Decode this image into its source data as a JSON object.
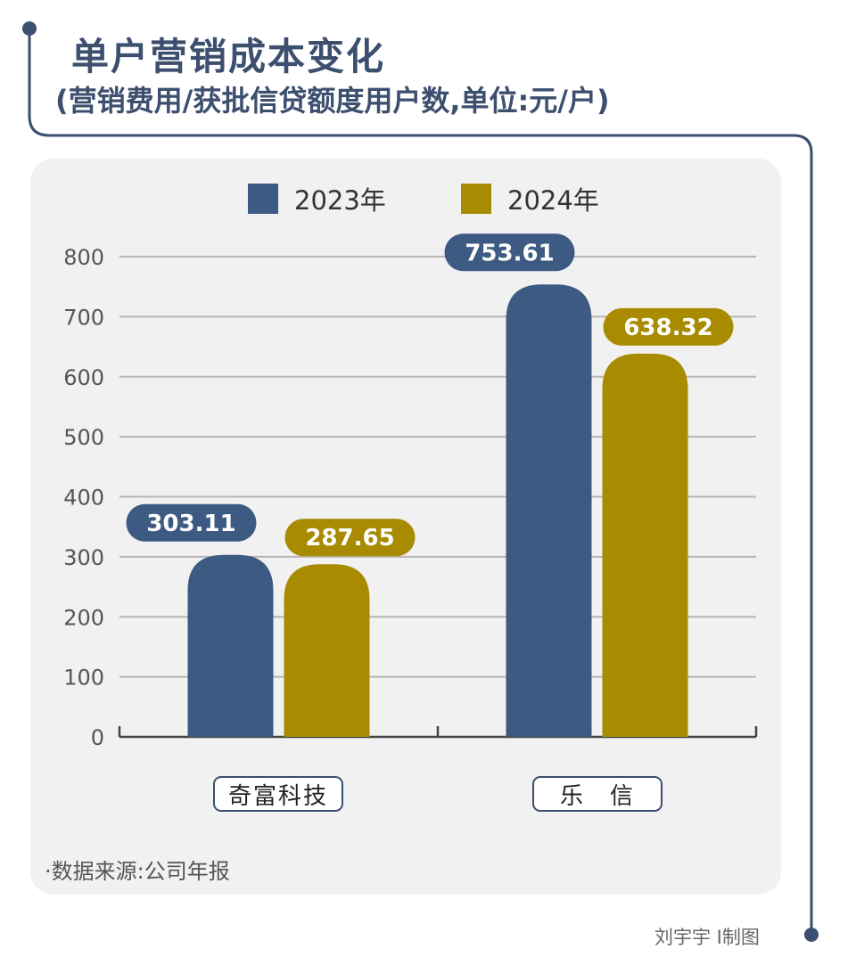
{
  "header": {
    "title": "单户营销成本变化",
    "subtitle": "(营销费用/获批信贷额度用户数,单位:元/户)"
  },
  "footer": {
    "source": "·数据来源:公司年报",
    "credit": "刘宇宇 I制图"
  },
  "colors": {
    "series_2023": "#3d5a82",
    "series_2024": "#a88b00",
    "accent_line": "#3c4f6e",
    "panel_bg": "#f1f1f1"
  },
  "chart_data": {
    "type": "bar",
    "title": "单户营销成本变化",
    "subtitle": "(营销费用/获批信贷额度用户数,单位:元/户)",
    "categories": [
      "奇富科技",
      "乐　信"
    ],
    "series": [
      {
        "name": "2023年",
        "values": [
          303.11,
          753.61
        ]
      },
      {
        "name": "2024年",
        "values": [
          287.65,
          638.32
        ]
      }
    ],
    "value_labels": [
      [
        "303.11",
        "753.61"
      ],
      [
        "287.65",
        "638.32"
      ]
    ],
    "ylim": [
      0,
      800
    ],
    "yticks": [
      0,
      100,
      200,
      300,
      400,
      500,
      600,
      700,
      800
    ],
    "ytick_labels": [
      "0",
      "100",
      "200",
      "300",
      "400",
      "500",
      "600",
      "700",
      "800"
    ],
    "grid": true,
    "legend": "top-center",
    "xlabel": "",
    "ylabel": ""
  }
}
